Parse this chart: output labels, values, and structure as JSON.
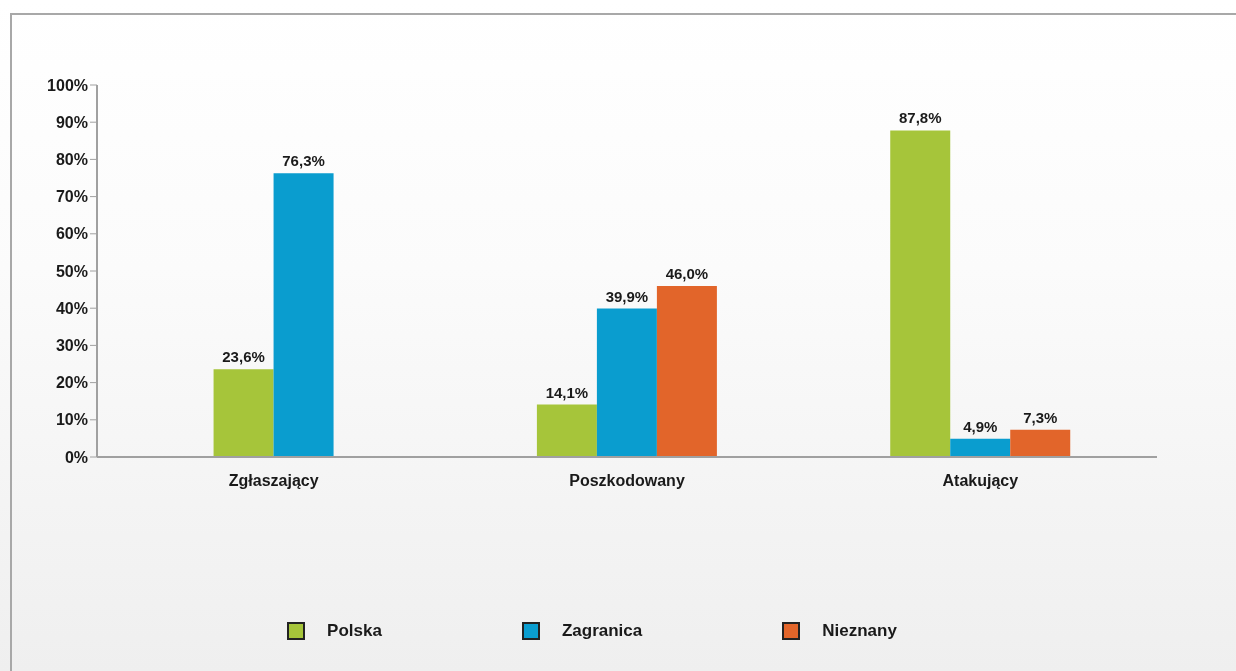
{
  "chart_data": {
    "type": "bar",
    "categories": [
      "Zgłaszający",
      "Poszkodowany",
      "Atakujący"
    ],
    "series": [
      {
        "name": "Polska",
        "color": "#a6c53a",
        "values": [
          23.6,
          14.1,
          87.8
        ],
        "value_labels": [
          "23,6%",
          "14,1%",
          "87,8%"
        ]
      },
      {
        "name": "Zagranica",
        "color": "#0a9dcf",
        "values": [
          76.3,
          39.9,
          4.9
        ],
        "value_labels": [
          "76,3%",
          "39,9%",
          "4,9%"
        ]
      },
      {
        "name": "Nieznany",
        "color": "#e2652a",
        "values": [
          null,
          46.0,
          7.3
        ],
        "value_labels": [
          null,
          "46,0%",
          "7,3%"
        ]
      }
    ],
    "ylim": [
      0,
      100
    ],
    "yticks": [
      {
        "value": 0,
        "label": "0%"
      },
      {
        "value": 10,
        "label": "10%"
      },
      {
        "value": 20,
        "label": "20%"
      },
      {
        "value": 30,
        "label": "30%"
      },
      {
        "value": 40,
        "label": "40%"
      },
      {
        "value": 50,
        "label": "50%"
      },
      {
        "value": 60,
        "label": "60%"
      },
      {
        "value": 70,
        "label": "70%"
      },
      {
        "value": 80,
        "label": "80%"
      },
      {
        "value": 90,
        "label": "90%"
      },
      {
        "value": 100,
        "label": "100%"
      }
    ],
    "legend": "bottom"
  }
}
